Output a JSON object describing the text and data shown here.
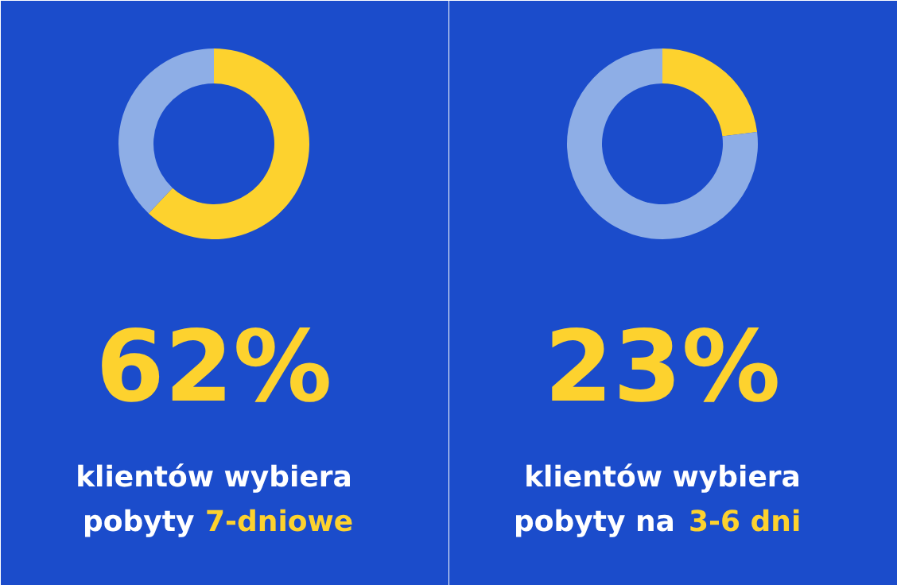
{
  "chart_data": [
    {
      "type": "donut",
      "categories": [
        null,
        null
      ],
      "values": [
        62,
        38
      ],
      "colors": [
        "#fdd22e",
        "#8eaee6"
      ],
      "title": "62%",
      "subtitle": "klientów wybiera",
      "annotations": [
        "pobyty",
        "7-dniowe"
      ]
    },
    {
      "type": "donut",
      "categories": [
        null,
        null
      ],
      "values": [
        23,
        77
      ],
      "colors": [
        "#fdd22e",
        "#8eaee6"
      ],
      "title": "23%",
      "subtitle": "klientów wybiera",
      "annotations": [
        "pobyty na",
        "3-6 dni"
      ]
    }
  ]
}
